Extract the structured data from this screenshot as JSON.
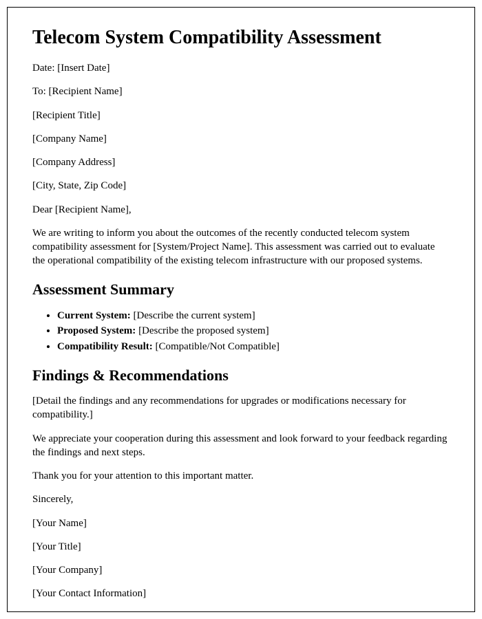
{
  "title": "Telecom System Compatibility Assessment",
  "header": {
    "date_label": "Date: ",
    "date_value": "[Insert Date]",
    "to_label": "To: ",
    "to_value": "[Recipient Name]",
    "recipient_title": "[Recipient Title]",
    "company_name": "[Company Name]",
    "company_address": "[Company Address]",
    "city_state_zip": "[City, State, Zip Code]"
  },
  "salutation": "Dear [Recipient Name],",
  "intro_paragraph": "We are writing to inform you about the outcomes of the recently conducted telecom system compatibility assessment for [System/Project Name]. This assessment was carried out to evaluate the operational compatibility of the existing telecom infrastructure with our proposed systems.",
  "sections": {
    "summary": {
      "heading": "Assessment Summary",
      "items": [
        {
          "label": "Current System: ",
          "value": "[Describe the current system]"
        },
        {
          "label": "Proposed System: ",
          "value": "[Describe the proposed system]"
        },
        {
          "label": "Compatibility Result: ",
          "value": "[Compatible/Not Compatible]"
        }
      ]
    },
    "findings": {
      "heading": "Findings & Recommendations",
      "detail": "[Detail the findings and any recommendations for upgrades or modifications necessary for compatibility.]"
    }
  },
  "closing": {
    "appreciation": "We appreciate your cooperation during this assessment and look forward to your feedback regarding the findings and next steps.",
    "thanks": "Thank you for your attention to this important matter.",
    "signoff": "Sincerely,",
    "your_name": "[Your Name]",
    "your_title": "[Your Title]",
    "your_company": "[Your Company]",
    "your_contact": "[Your Contact Information]"
  }
}
